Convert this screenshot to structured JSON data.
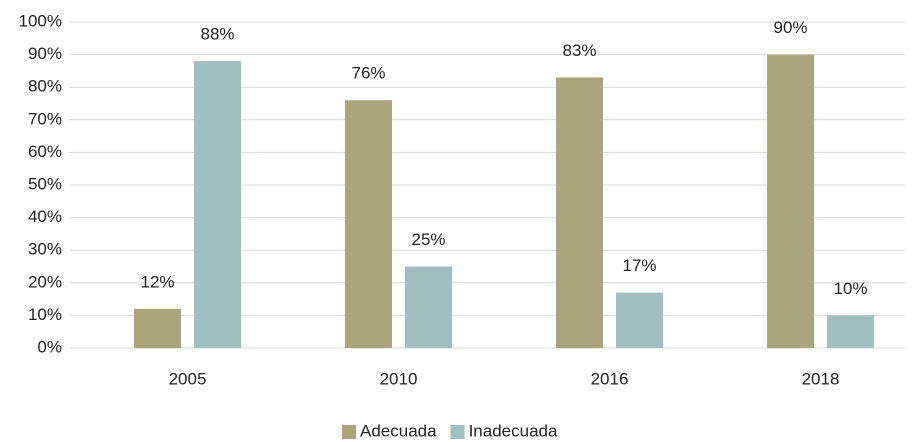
{
  "chart_data": {
    "type": "bar",
    "categories": [
      "2005",
      "2010",
      "2016",
      "2018"
    ],
    "series": [
      {
        "name": "Adecuada",
        "color": "#a9a57c",
        "values": [
          12,
          76,
          83,
          90
        ],
        "value_labels": [
          "12%",
          "76%",
          "83%",
          "90%"
        ]
      },
      {
        "name": "Inadecuada",
        "color": "#a0bfbe",
        "values": [
          88,
          25,
          17,
          10
        ],
        "value_labels": [
          "88%",
          "25%",
          "17%",
          "10%"
        ]
      }
    ],
    "ylim": [
      0,
      100
    ],
    "yticks": [
      {
        "value": 0,
        "label": "0%"
      },
      {
        "value": 10,
        "label": "10%"
      },
      {
        "value": 20,
        "label": "20%"
      },
      {
        "value": 30,
        "label": "30%"
      },
      {
        "value": 40,
        "label": "40%"
      },
      {
        "value": 50,
        "label": "50%"
      },
      {
        "value": 60,
        "label": "60%"
      },
      {
        "value": 70,
        "label": "70%"
      },
      {
        "value": 80,
        "label": "80%"
      },
      {
        "value": 90,
        "label": "90%"
      },
      {
        "value": 100,
        "label": "100%"
      }
    ],
    "grid": true,
    "legend": "bottom"
  }
}
